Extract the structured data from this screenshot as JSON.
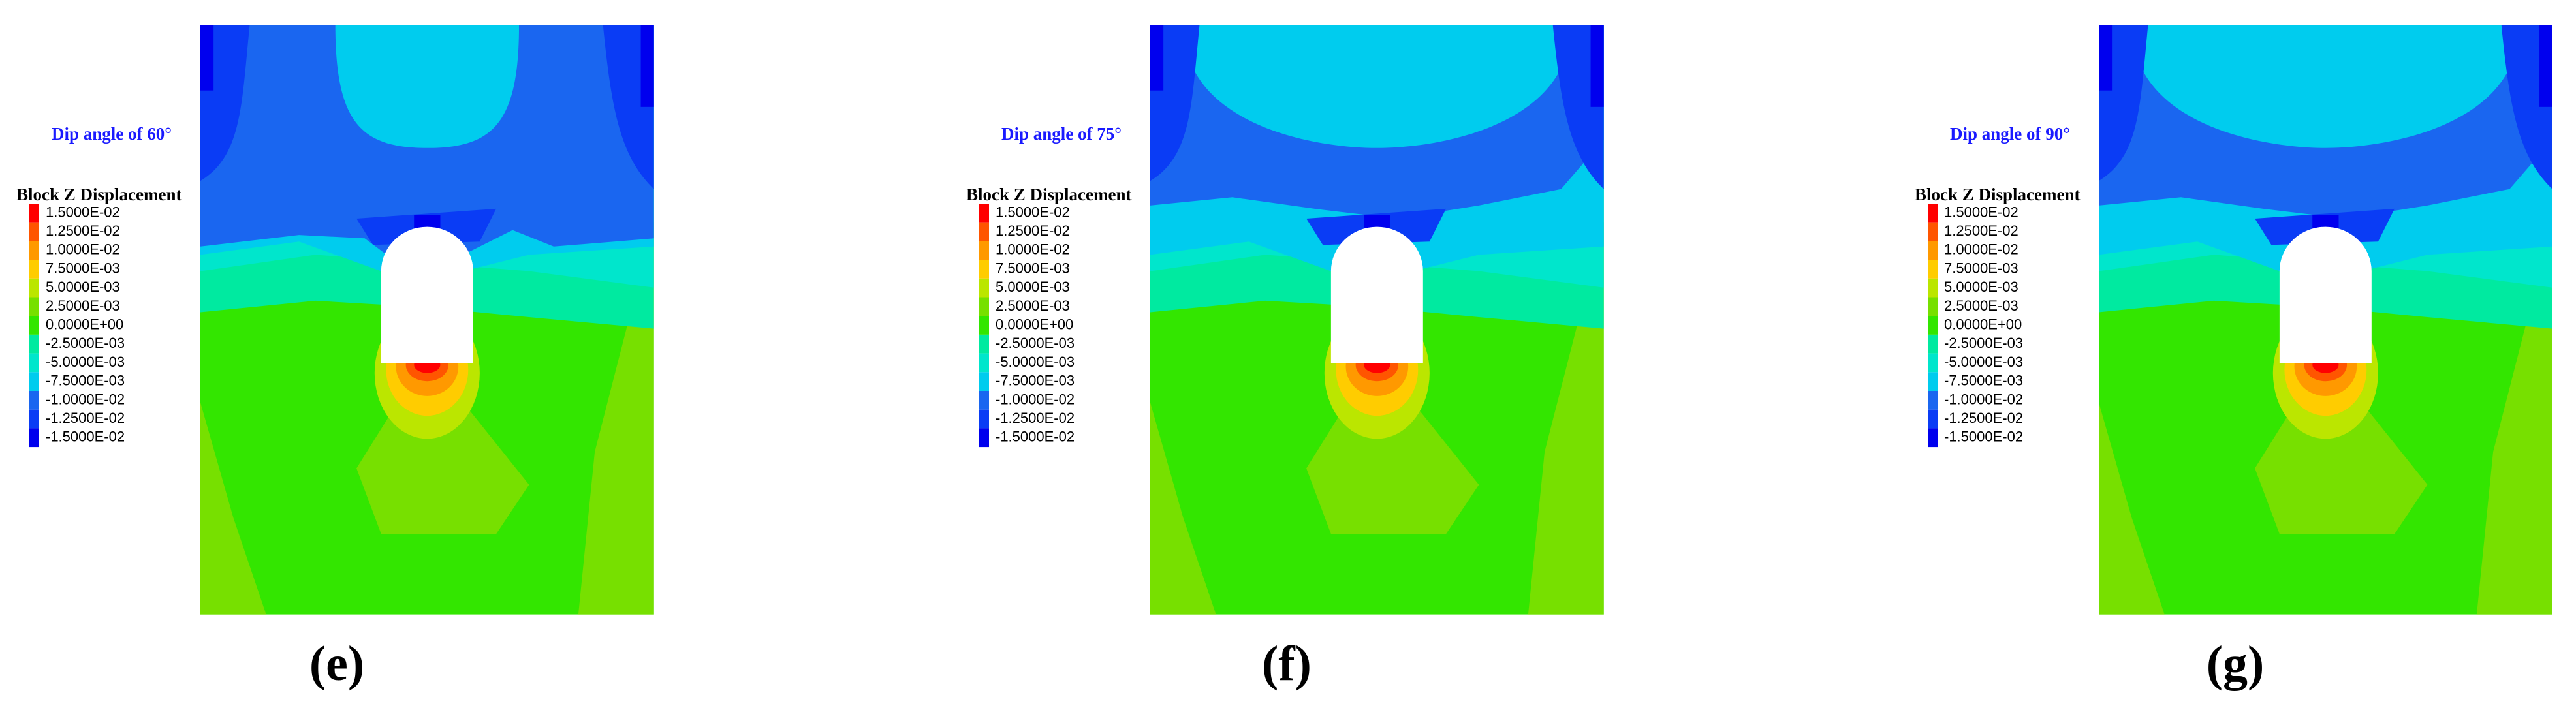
{
  "legend_colors": [
    "#ff0000",
    "#ff5500",
    "#ff9900",
    "#ffcc00",
    "#bbe600",
    "#77e000",
    "#33e600",
    "#00eaa0",
    "#00e6cc",
    "#00ccee",
    "#1a66f0",
    "#0a3cf5",
    "#0000ee"
  ],
  "panels": [
    {
      "label": "(e)",
      "dip": "Dip angle of 60°",
      "legend_title": "Block Z Displacement",
      "legend": [
        "1.5000E-02",
        "1.2500E-02",
        "1.0000E-02",
        "7.5000E-03",
        "5.0000E-03",
        "2.5000E-03",
        "0.0000E+00",
        "-2.5000E-03",
        "-5.0000E-03",
        "-7.5000E-03",
        "-1.0000E-02",
        "-1.2500E-02",
        "-1.5000E-02"
      ]
    },
    {
      "label": "(f)",
      "dip": "Dip angle of 75°",
      "legend_title": "Block Z Displacement",
      "legend": [
        "1.5000E-02",
        "1.2500E-02",
        "1.0000E-02",
        "7.5000E-03",
        "5.0000E-03",
        "2.5000E-03",
        "0.0000E+00",
        "-2.5000E-03",
        "-5.0000E-03",
        "-7.5000E-03",
        "-1.0000E-02",
        "-1.2500E-02",
        "-1.5000E-02"
      ]
    },
    {
      "label": "(g)",
      "dip": "Dip angle of 90°",
      "legend_title": "Block Z Displacement",
      "legend": [
        "1.5000E-02",
        "1.2500E-02",
        "1.0000E-02",
        "7.5000E-03",
        "5.0000E-03",
        "2.5000E-03",
        "0.0000E+00",
        "-2.5000E-03",
        "-5.0000E-03",
        "-7.5000E-03",
        "-1.0000E-02",
        "-1.2500E-02",
        "-1.5000E-02"
      ]
    }
  ]
}
